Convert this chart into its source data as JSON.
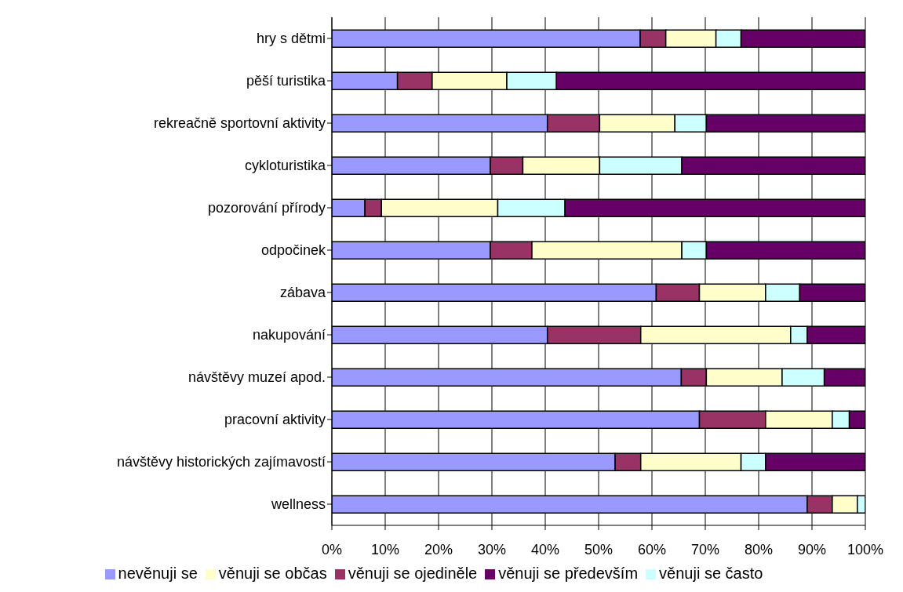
{
  "chart_data": {
    "type": "bar",
    "orientation": "horizontal",
    "stacked": true,
    "categories": [
      "hry s dětmi",
      "pěší turistika",
      "rekreačně sportovní aktivity",
      "cykloturistika",
      "pozorování přírody",
      "odpočinek",
      "zábava",
      "nakupování",
      "návštěvy muzeí apod.",
      "pracovní aktivity",
      "návštěvy historických zajímavostí",
      "wellness"
    ],
    "series": [
      {
        "name": "nevěnuji se",
        "color": "#9999ff",
        "values": [
          57.8,
          12.3,
          40.4,
          29.7,
          6.2,
          29.7,
          60.8,
          40.4,
          65.5,
          68.9,
          53.1,
          89.1
        ]
      },
      {
        "name": "věnuji se ojediněle",
        "color": "#993366",
        "values": [
          4.8,
          6.5,
          9.8,
          6.1,
          3.1,
          7.8,
          8.1,
          17.5,
          4.7,
          12.4,
          4.8,
          4.7
        ]
      },
      {
        "name": "věnuji se občas",
        "color": "#ffffcc",
        "values": [
          9.4,
          14.0,
          14.1,
          14.4,
          21.8,
          28.1,
          12.4,
          28.1,
          14.2,
          12.5,
          18.8,
          4.7
        ]
      },
      {
        "name": "věnuji se často",
        "color": "#ccffff",
        "values": [
          4.7,
          9.3,
          5.9,
          15.4,
          12.6,
          4.6,
          6.4,
          3.1,
          7.9,
          3.2,
          4.6,
          1.5
        ]
      },
      {
        "name": "věnuji se především",
        "color": "#660066",
        "values": [
          23.3,
          57.9,
          29.8,
          34.4,
          56.3,
          29.8,
          12.3,
          10.9,
          7.7,
          3.0,
          18.7,
          0
        ]
      }
    ],
    "xlim": [
      0,
      100
    ],
    "xticks": [
      {
        "value": 0,
        "label": "0%"
      },
      {
        "value": 10,
        "label": "10%"
      },
      {
        "value": 20,
        "label": "20%"
      },
      {
        "value": 30,
        "label": "30%"
      },
      {
        "value": 40,
        "label": "40%"
      },
      {
        "value": 50,
        "label": "50%"
      },
      {
        "value": 60,
        "label": "60%"
      },
      {
        "value": 70,
        "label": "70%"
      },
      {
        "value": 80,
        "label": "80%"
      },
      {
        "value": 90,
        "label": "90%"
      },
      {
        "value": 100,
        "label": "100%"
      }
    ],
    "grid": "x",
    "legend": "bottom"
  }
}
